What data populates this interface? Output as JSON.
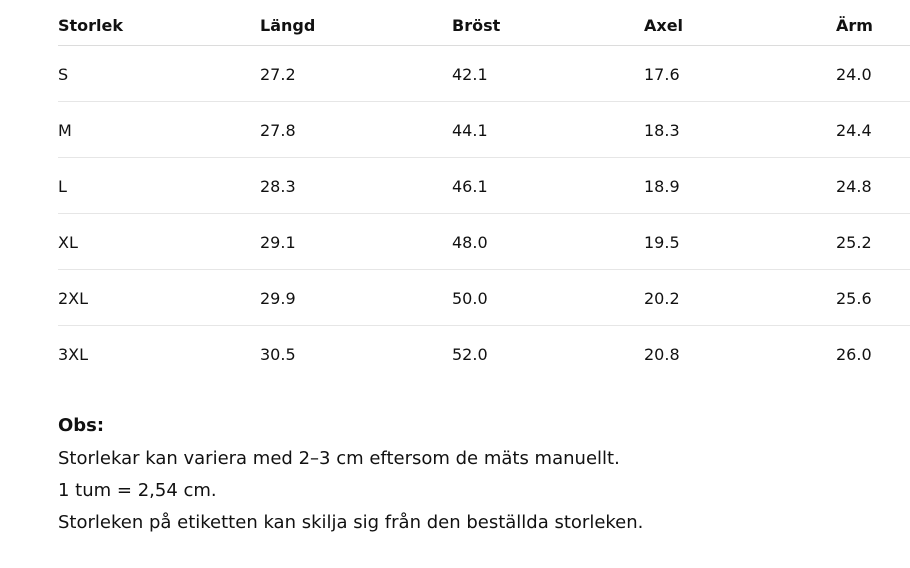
{
  "table": {
    "header": [
      "Storlek",
      "Längd",
      "Bröst",
      "Axel",
      "Ärm"
    ],
    "rows": [
      [
        "S",
        "27.2",
        "42.1",
        "17.6",
        "24.0"
      ],
      [
        "M",
        "27.8",
        "44.1",
        "18.3",
        "24.4"
      ],
      [
        "L",
        "28.3",
        "46.1",
        "18.9",
        "24.8"
      ],
      [
        "XL",
        "29.1",
        "48.0",
        "19.5",
        "25.2"
      ],
      [
        "2XL",
        "29.9",
        "50.0",
        "20.2",
        "25.6"
      ],
      [
        "3XL",
        "30.5",
        "52.0",
        "20.8",
        "26.0"
      ]
    ]
  },
  "notes": {
    "title": "Obs:",
    "lines": [
      "Storlekar kan variera med 2–3 cm eftersom de mäts manuellt.",
      "1 tum = 2,54 cm.",
      "Storleken på etiketten kan skilja sig från den beställda storleken."
    ]
  }
}
